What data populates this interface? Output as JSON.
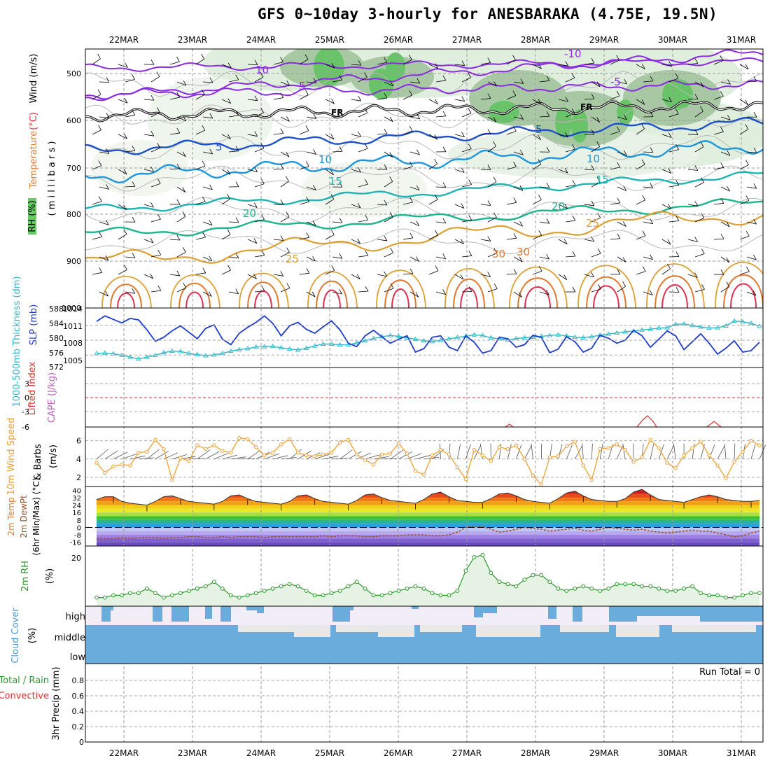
{
  "title": "GFS 0~10day 3-hourly for ANESBARAKA (4.75E, 19.5N)",
  "days": [
    "22MAR",
    "23MAR",
    "24MAR",
    "25MAR",
    "26MAR",
    "27MAR",
    "28MAR",
    "29MAR",
    "30MAR",
    "31MAR"
  ],
  "colors": {
    "temp_neg": "#8a2be2",
    "temp_fr": "#000000",
    "temp_5": "#1e50c8",
    "temp_10": "#1e96dc",
    "temp_15": "#1eb4b4",
    "temp_20": "#1eb48c",
    "temp_25": "#dca032",
    "temp_30": "#e07830",
    "temp_35": "#e03050",
    "slp": "#1e3cc8",
    "thickness": "#30b8c8",
    "wind_speed": "#f0a030",
    "rh": "#2a9a2a",
    "cloud": "#6aacdc",
    "li": "#e03030",
    "cape": "#c060c0"
  },
  "panels": {
    "upper_air": {
      "y_ticks": [
        "500",
        "600",
        "700",
        "800",
        "900",
        "1000"
      ],
      "ylabel_parts": [
        "RH (%)",
        "Temperature",
        "(°C)",
        "Wind (m/s)",
        "( m i l l i b a r s )"
      ],
      "contour_labels": [
        "10",
        "5",
        "FR",
        "5",
        "10",
        "15",
        "20",
        "25",
        "30",
        "-10",
        "-5",
        "FR",
        "5",
        "10",
        "15",
        "20",
        "25",
        "30"
      ]
    },
    "slp": {
      "label_thickness": "1000-500mb Thickness (dm)",
      "label_slp": "SLP (mb)",
      "left_ticks": [
        "588",
        "584",
        "580",
        "576",
        "572"
      ],
      "right_ticks": [
        "1014",
        "1011",
        "1008",
        "1005"
      ]
    },
    "li": {
      "label_li": "Lifted Index",
      "label_cape": "CAPE (J/kg)",
      "ticks": [
        "3",
        "0",
        "-3",
        "-6"
      ]
    },
    "wind10": {
      "label1": "10m Wind Speed",
      "label2": "& Barbs",
      "unit": "(m/s)",
      "ticks": [
        "6",
        "4",
        "2"
      ]
    },
    "temp2m": {
      "label1": "2m Temp",
      "label2": "2m DewPt",
      "label3": "(6hr Min/Max) (°C)",
      "ticks": [
        "40",
        "32",
        "24",
        "16",
        "8",
        "0",
        "-8",
        "-16"
      ]
    },
    "rh2m": {
      "label": "2m RH",
      "unit": "(%)",
      "ticks": [
        "20"
      ]
    },
    "cloud": {
      "label": "Cloud Cover",
      "unit": "(%)",
      "levels": [
        "high",
        "middle",
        "low"
      ]
    },
    "precip": {
      "label1": "Total / Rain",
      "label2": "Convective",
      "label3": "3hr Precip (mm)",
      "ticks": [
        "0.8",
        "0.6",
        "0.4",
        "0.2",
        "0"
      ],
      "run_total": "Run Total = 0"
    }
  },
  "chart_data": [
    {
      "type": "line",
      "name": "slp_thickness",
      "x_unit": "forecast hour (3-hourly)",
      "x": [
        0,
        3,
        6,
        9,
        12,
        15,
        18,
        21,
        24,
        27,
        30,
        33,
        36,
        39,
        42,
        45,
        48,
        51,
        54,
        57,
        60,
        63,
        66,
        69,
        72,
        75,
        78,
        81,
        84,
        87,
        90,
        93,
        96,
        99,
        102,
        105,
        108,
        111,
        114,
        117,
        120,
        123,
        126,
        129,
        132,
        135,
        138,
        141,
        144,
        147,
        150,
        153,
        156,
        159,
        162,
        165,
        168,
        171,
        174,
        177,
        180,
        183,
        186,
        189,
        192,
        195,
        198,
        201,
        204,
        207,
        210,
        213,
        216,
        219,
        222,
        225,
        228,
        231,
        234,
        237
      ],
      "series": [
        {
          "name": "SLP (mb)",
          "values": [
            1011.8,
            1012.9,
            1012.2,
            1011.5,
            1012.4,
            1012.1,
            1010.1,
            1007.8,
            1008.6,
            1009.9,
            1010.9,
            1009.6,
            1008.3,
            1010.4,
            1011.1,
            1008.2,
            1007.1,
            1009.4,
            1010.6,
            1011.6,
            1012.9,
            1011.4,
            1008.9,
            1010.9,
            1011.6,
            1010.2,
            1009.4,
            1010.7,
            1011.9,
            1010.1,
            1007.4,
            1006.7,
            1008.9,
            1010.0,
            1008.7,
            1007.4,
            1008.2,
            1008.9,
            1005.6,
            1006.3,
            1008.6,
            1008.9,
            1006.6,
            1005.9,
            1008.9,
            1007.6,
            1005.4,
            1005.9,
            1008.6,
            1008.3,
            1006.6,
            1007.1,
            1009.0,
            1008.6,
            1005.5,
            1006.2,
            1008.7,
            1007.7,
            1005.6,
            1006.4,
            1009.0,
            1008.4,
            1007.4,
            1008.0,
            1010.0,
            1008.9,
            1006.6,
            1008.2,
            1009.9,
            1008.9,
            1006.1,
            1007.7,
            1009.3,
            1007.4,
            1005.2,
            1006.4,
            1007.9,
            1005.6,
            1005.9,
            1007.6
          ]
        },
        {
          "name": "1000-500mb Thickness (dm)",
          "values": [
            575.8,
            575.9,
            575.7,
            575.3,
            574.8,
            574.3,
            574.8,
            575.3,
            576.0,
            576.4,
            576.3,
            575.8,
            575.5,
            575.2,
            575.4,
            575.8,
            576.4,
            576.8,
            577.1,
            577.5,
            577.6,
            577.7,
            577.3,
            577.0,
            576.7,
            577.2,
            577.8,
            578.3,
            578.3,
            578.1,
            578.1,
            578.6,
            579.2,
            579.8,
            580.3,
            580.6,
            580.4,
            580.0,
            579.6,
            579.2,
            579.0,
            579.3,
            579.7,
            580.1,
            580.4,
            580.8,
            580.6,
            580.0,
            579.7,
            579.4,
            579.8,
            580.0,
            580.2,
            580.4,
            580.6,
            580.8,
            580.5,
            580.2,
            580.0,
            580.3,
            580.7,
            581.0,
            581.3,
            581.6,
            581.8,
            582.1,
            582.3,
            582.6,
            582.7,
            583.6,
            583.7,
            583.3,
            582.9,
            582.6,
            582.7,
            583.2,
            584.5,
            584.3,
            583.9,
            583.1
          ]
        }
      ],
      "ylim_slp": [
        1002.5,
        1014.5
      ],
      "ylim_thickness": [
        572,
        588
      ]
    },
    {
      "type": "line",
      "name": "wind10m",
      "x_unit": "forecast hour (3-hourly)",
      "x": [
        0,
        3,
        6,
        9,
        12,
        15,
        18,
        21,
        24,
        27,
        30,
        33,
        36,
        39,
        42,
        45,
        48,
        51,
        54,
        57,
        60,
        63,
        66,
        69,
        72,
        75,
        78,
        81,
        84,
        87,
        90,
        93,
        96,
        99,
        102,
        105,
        108,
        111,
        114,
        117,
        120,
        123,
        126,
        129,
        132,
        135,
        138,
        141,
        144,
        147,
        150,
        153,
        156,
        159,
        162,
        165,
        168,
        171,
        174,
        177,
        180,
        183,
        186,
        189,
        192,
        195,
        198,
        201,
        204,
        207,
        210,
        213,
        216,
        219,
        222,
        225,
        228,
        231,
        234,
        237
      ],
      "series": [
        {
          "name": "10m Wind Speed (m/s)",
          "values": [
            3.6,
            2.5,
            3.2,
            3.4,
            3.3,
            4.7,
            4.8,
            6.1,
            5.1,
            1.7,
            4.1,
            3.8,
            5.5,
            5.1,
            5.5,
            4.9,
            4.7,
            6.3,
            6.2,
            5.3,
            4.4,
            4.7,
            5.6,
            6.2,
            4.7,
            4.4,
            4.3,
            4.5,
            4.7,
            5.8,
            6.1,
            4.5,
            3.9,
            3.4,
            4.5,
            4.6,
            5.7,
            4.6,
            2.7,
            2.3,
            4.4,
            5.0,
            4.5,
            3.1,
            1.8,
            5.0,
            4.4,
            3.8,
            5.3,
            5.1,
            5.5,
            4.0,
            2.2,
            1.2,
            4.2,
            4.3,
            5.4,
            5.9,
            3.3,
            1.7,
            5.1,
            5.2,
            5.6,
            5.0,
            3.7,
            4.2,
            6.1,
            5.2,
            3.6,
            3.0,
            4.4,
            5.2,
            5.9,
            4.4,
            3.3,
            1.9,
            3.7,
            4.8,
            6.0,
            5.5
          ]
        }
      ],
      "ylim": [
        1,
        7.5
      ]
    },
    {
      "type": "area",
      "name": "temp2m",
      "x_unit": "forecast hour (3-hourly)",
      "x": [
        0,
        3,
        6,
        9,
        12,
        15,
        18,
        21,
        24,
        27,
        30,
        33,
        36,
        39,
        42,
        45,
        48,
        51,
        54,
        57,
        60,
        63,
        66,
        69,
        72,
        75,
        78,
        81,
        84,
        87,
        90,
        93,
        96,
        99,
        102,
        105,
        108,
        111,
        114,
        117,
        120,
        123,
        126,
        129,
        132,
        135,
        138,
        141,
        144,
        147,
        150,
        153,
        156,
        159,
        162,
        165,
        168,
        171,
        174,
        177,
        180,
        183,
        186,
        189,
        192,
        195,
        198,
        201,
        204,
        207,
        210,
        213,
        216,
        219,
        222,
        225,
        228,
        231,
        234,
        237
      ],
      "series": [
        {
          "name": "2m Temp (°C)",
          "values": [
            30,
            33,
            33,
            28,
            26,
            25,
            24,
            28,
            33,
            34,
            31,
            28,
            27,
            26,
            25,
            28,
            34,
            35,
            31,
            28,
            27,
            26,
            25,
            28,
            34,
            35,
            31,
            28,
            27,
            26,
            25,
            29,
            35,
            36,
            32,
            29,
            28,
            27,
            26,
            30,
            36,
            38,
            33,
            29,
            28,
            27,
            27,
            31,
            36,
            37,
            34,
            30,
            28,
            27,
            26,
            31,
            37,
            39,
            34,
            30,
            29,
            28,
            28,
            31,
            38,
            41,
            35,
            30,
            29,
            28,
            27,
            30,
            33,
            35,
            33,
            30,
            29,
            28,
            28,
            29
          ]
        },
        {
          "name": "2m DewPt (°C)",
          "values": [
            -12,
            -12,
            -12,
            -11,
            -12,
            -11,
            -11,
            -11,
            -12,
            -11,
            -11,
            -10,
            -10,
            -11,
            -11,
            -10,
            -11,
            -10,
            -10,
            -10,
            -11,
            -10,
            -10,
            -10,
            -10,
            -10,
            -10,
            -9,
            -10,
            -9,
            -9,
            -9,
            -10,
            -10,
            -9,
            -9,
            -9,
            -8,
            -8,
            -8,
            -9,
            -9,
            -8,
            -5,
            0,
            1,
            1,
            -2,
            -5,
            -4,
            -2,
            0,
            -1,
            -2,
            -4,
            -3,
            -2,
            -1,
            -3,
            -4,
            -2,
            0,
            -1,
            -2,
            -3,
            -2,
            -4,
            -5,
            -6,
            -5,
            -4,
            -3,
            -4,
            -4,
            -6,
            -8,
            -10,
            -9,
            -6,
            -4
          ]
        }
      ],
      "ylim": [
        -20,
        44
      ]
    },
    {
      "type": "line",
      "name": "rh2m",
      "x_unit": "forecast hour (3-hourly)",
      "x": [
        0,
        3,
        6,
        9,
        12,
        15,
        18,
        21,
        24,
        27,
        30,
        33,
        36,
        39,
        42,
        45,
        48,
        51,
        54,
        57,
        60,
        63,
        66,
        69,
        72,
        75,
        78,
        81,
        84,
        87,
        90,
        93,
        96,
        99,
        102,
        105,
        108,
        111,
        114,
        117,
        120,
        123,
        126,
        129,
        132,
        135,
        138,
        141,
        144,
        147,
        150,
        153,
        156,
        159,
        162,
        165,
        168,
        171,
        174,
        177,
        180,
        183,
        186,
        189,
        192,
        195,
        198,
        201,
        204,
        207,
        210,
        213,
        216,
        219,
        222,
        225,
        228,
        231,
        234,
        237
      ],
      "series": [
        {
          "name": "2m RH (%)",
          "values": [
            2,
            2,
            3,
            3,
            4,
            4,
            6,
            4,
            2,
            3,
            4,
            5,
            6,
            7,
            9,
            6,
            3,
            2,
            3,
            4,
            5,
            6,
            7,
            8,
            7,
            5,
            3,
            3,
            4,
            5,
            7,
            9,
            6,
            3,
            3,
            4,
            5,
            6,
            7,
            6,
            4,
            3,
            3,
            5,
            14,
            20,
            21,
            13,
            9,
            8,
            7,
            10,
            12,
            12,
            9,
            6,
            5,
            6,
            7,
            6,
            5,
            6,
            8,
            8,
            8,
            7,
            7,
            6,
            5,
            5,
            6,
            7,
            4,
            3,
            3,
            2,
            2,
            3,
            4,
            4
          ]
        }
      ],
      "ylim": [
        0,
        25
      ]
    },
    {
      "type": "bar",
      "name": "precip3hr",
      "series": [
        {
          "name": "3hr Precip (mm)",
          "values": [
            0
          ]
        }
      ],
      "ylim": [
        0,
        1
      ]
    }
  ]
}
